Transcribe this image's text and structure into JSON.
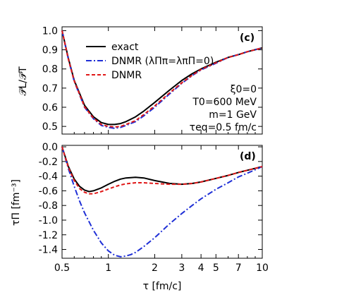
{
  "colors": {
    "exact": "#000000",
    "dnmr_zero": "#1f2fd6",
    "dnmr": "#e01818"
  },
  "chart_data": [
    {
      "type": "line",
      "panel_label": "(c)",
      "ylabel": "𝒫L/𝒫T",
      "xlabel": "",
      "xscale": "log",
      "xlim": [
        0.5,
        10
      ],
      "ylim": [
        0.46,
        1.02
      ],
      "yticks": [
        "0.5",
        "0.6",
        "0.7",
        "0.8",
        "0.9",
        "1.0"
      ],
      "legend": {
        "placement": "top-left",
        "entries": [
          "exact",
          "DNMR (λΠπ=λπΠ=0)",
          "DNMR"
        ]
      },
      "annotations": [
        "ξ0=0",
        "T0=600 MeV",
        "m=1 GeV",
        "τeq=0.5 fm/c"
      ],
      "series": [
        {
          "name": "exact",
          "style": "solid",
          "x": [
            0.5,
            0.55,
            0.6,
            0.7,
            0.8,
            0.9,
            1.0,
            1.1,
            1.2,
            1.3,
            1.5,
            1.7,
            2.0,
            2.5,
            3.0,
            3.5,
            4.0,
            5.0,
            6.0,
            7.0,
            8.0,
            10.0
          ],
          "y": [
            1.0,
            0.855,
            0.74,
            0.61,
            0.55,
            0.52,
            0.51,
            0.51,
            0.515,
            0.525,
            0.55,
            0.58,
            0.625,
            0.69,
            0.74,
            0.775,
            0.8,
            0.835,
            0.86,
            0.875,
            0.89,
            0.91
          ]
        },
        {
          "name": "DNMR (λΠπ=λπΠ=0)",
          "style": "dashdot",
          "x": [
            0.5,
            0.55,
            0.6,
            0.7,
            0.8,
            0.9,
            1.0,
            1.1,
            1.2,
            1.3,
            1.5,
            1.7,
            2.0,
            2.5,
            3.0,
            3.5,
            4.0,
            5.0,
            6.0,
            7.0,
            8.0,
            10.0
          ],
          "y": [
            1.0,
            0.85,
            0.735,
            0.6,
            0.54,
            0.505,
            0.495,
            0.49,
            0.495,
            0.505,
            0.525,
            0.555,
            0.6,
            0.67,
            0.725,
            0.765,
            0.795,
            0.83,
            0.86,
            0.875,
            0.89,
            0.91
          ]
        },
        {
          "name": "DNMR",
          "style": "dashed",
          "x": [
            0.5,
            0.55,
            0.6,
            0.7,
            0.8,
            0.9,
            1.0,
            1.1,
            1.2,
            1.3,
            1.5,
            1.7,
            2.0,
            2.5,
            3.0,
            3.5,
            4.0,
            5.0,
            6.0,
            7.0,
            8.0,
            10.0
          ],
          "y": [
            1.0,
            0.85,
            0.737,
            0.603,
            0.543,
            0.51,
            0.5,
            0.497,
            0.5,
            0.51,
            0.53,
            0.562,
            0.607,
            0.675,
            0.728,
            0.767,
            0.797,
            0.832,
            0.86,
            0.875,
            0.89,
            0.91
          ]
        }
      ]
    },
    {
      "type": "line",
      "panel_label": "(d)",
      "ylabel": "τΠ [fm⁻³]",
      "xlabel": "τ [fm/c]",
      "xscale": "log",
      "xlim": [
        0.5,
        10
      ],
      "ylim": [
        -1.52,
        0.02
      ],
      "xticks": [
        "0.5",
        "1",
        "2",
        "3",
        "4",
        "5",
        "7",
        "10"
      ],
      "yticks": [
        "0.0",
        "-0.2",
        "-0.4",
        "-0.6",
        "-0.8",
        "-1.0",
        "-1.2",
        "-1.4"
      ],
      "series": [
        {
          "name": "exact",
          "style": "solid",
          "x": [
            0.5,
            0.55,
            0.6,
            0.65,
            0.7,
            0.75,
            0.8,
            0.9,
            1.0,
            1.1,
            1.2,
            1.3,
            1.5,
            1.7,
            2.0,
            2.5,
            3.0,
            3.5,
            4.0,
            5.0,
            6.0,
            7.0,
            8.0,
            10.0
          ],
          "y": [
            0.0,
            -0.27,
            -0.44,
            -0.54,
            -0.59,
            -0.61,
            -0.6,
            -0.56,
            -0.51,
            -0.47,
            -0.44,
            -0.425,
            -0.415,
            -0.425,
            -0.46,
            -0.5,
            -0.51,
            -0.5,
            -0.48,
            -0.43,
            -0.39,
            -0.35,
            -0.32,
            -0.27
          ]
        },
        {
          "name": "DNMR (λΠπ=λπΠ=0)",
          "style": "dashdot",
          "x": [
            0.5,
            0.55,
            0.6,
            0.65,
            0.7,
            0.8,
            0.9,
            1.0,
            1.1,
            1.2,
            1.3,
            1.4,
            1.5,
            1.7,
            2.0,
            2.5,
            3.0,
            3.5,
            4.0,
            5.0,
            6.0,
            7.0,
            8.0,
            10.0
          ],
          "y": [
            0.0,
            -0.3,
            -0.54,
            -0.74,
            -0.9,
            -1.14,
            -1.31,
            -1.42,
            -1.48,
            -1.5,
            -1.49,
            -1.47,
            -1.44,
            -1.36,
            -1.24,
            -1.05,
            -0.91,
            -0.8,
            -0.71,
            -0.58,
            -0.49,
            -0.41,
            -0.36,
            -0.27
          ]
        },
        {
          "name": "DNMR",
          "style": "dashed",
          "x": [
            0.5,
            0.55,
            0.6,
            0.65,
            0.7,
            0.75,
            0.8,
            0.9,
            1.0,
            1.1,
            1.2,
            1.3,
            1.5,
            1.7,
            2.0,
            2.5,
            3.0,
            3.5,
            4.0,
            5.0,
            6.0,
            7.0,
            8.0,
            10.0
          ],
          "y": [
            0.0,
            -0.28,
            -0.46,
            -0.57,
            -0.62,
            -0.64,
            -0.64,
            -0.61,
            -0.575,
            -0.545,
            -0.52,
            -0.505,
            -0.49,
            -0.49,
            -0.5,
            -0.51,
            -0.51,
            -0.5,
            -0.48,
            -0.43,
            -0.39,
            -0.35,
            -0.32,
            -0.27
          ]
        }
      ]
    }
  ]
}
